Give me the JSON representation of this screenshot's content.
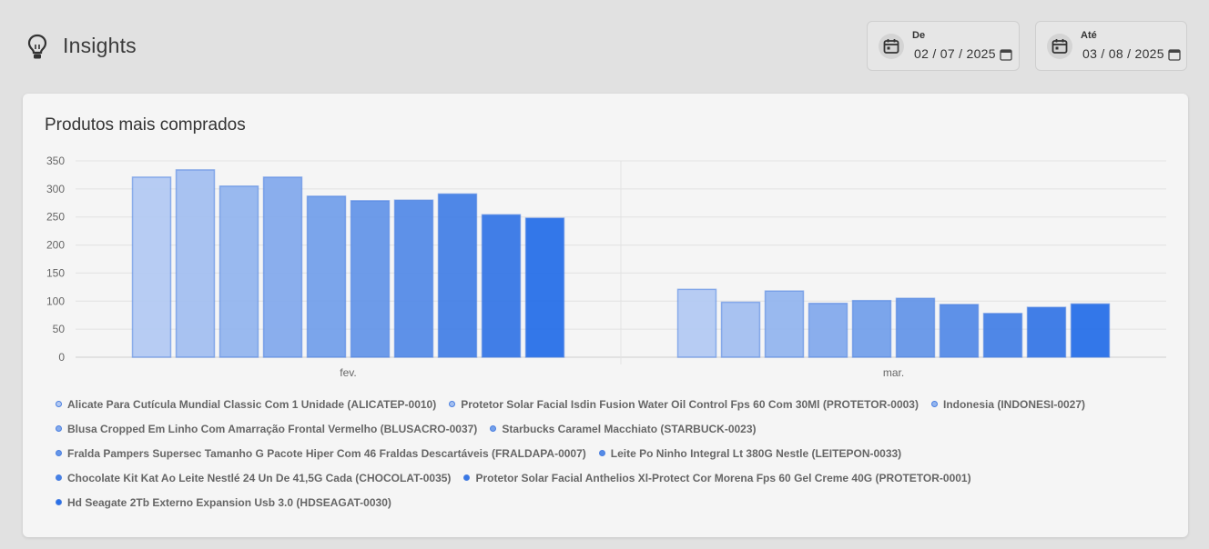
{
  "header": {
    "title": "Insights",
    "icon": "lightbulb-icon"
  },
  "date_from": {
    "label": "De",
    "value": "02 / 07 / 2025"
  },
  "date_to": {
    "label": "Até",
    "value": "03 / 08 / 2025"
  },
  "card": {
    "title": "Produtos mais comprados"
  },
  "chart_data": {
    "type": "bar",
    "title": "Produtos mais comprados",
    "categories": [
      "fev.",
      "mar."
    ],
    "ylim": [
      0,
      350
    ],
    "yticks": [
      0,
      50,
      100,
      150,
      200,
      250,
      300,
      350
    ],
    "grid": true,
    "legend_position": "bottom",
    "series": [
      {
        "name": "Alicate Para Cutícula Mundial Classic Com 1 Unidade (ALICATEP-0010)",
        "values": [
          321,
          121
        ],
        "color": "#b3c9f2"
      },
      {
        "name": "Protetor Solar Facial Isdin Fusion Water Oil Control Fps 60 Com 30Ml (PROTETOR-0003)",
        "values": [
          334,
          98
        ],
        "color": "#a3bff0"
      },
      {
        "name": "Indonesia (INDONESI-0027)",
        "values": [
          305,
          118
        ],
        "color": "#93b5ee"
      },
      {
        "name": "Blusa Cropped Em Linho Com Amarração Frontal Vermelho (BLUSACRO-0037)",
        "values": [
          321,
          96
        ],
        "color": "#84aaec"
      },
      {
        "name": "Starbucks Caramel Macchiato (STARBUCK-0023)",
        "values": [
          287,
          101
        ],
        "color": "#74a0ea"
      },
      {
        "name": "Fralda Pampers Supersec Tamanho G Pacote Hiper Com 46 Fraldas Descartáveis (FRALDAPA-0007)",
        "values": [
          279,
          105
        ],
        "color": "#6596e8"
      },
      {
        "name": "Leite Po Ninho Integral Lt 380G Nestle (LEITEPON-0033)",
        "values": [
          280,
          94
        ],
        "color": "#558be7"
      },
      {
        "name": "Chocolate Kit Kat Ao Leite Nestlé 24 Un De 41,5G Cada (CHOCOLAT-0035)",
        "values": [
          291,
          78
        ],
        "color": "#4681e6"
      },
      {
        "name": "Protetor Solar Facial Anthelios Xl-Protect Cor Morena Fps 60 Gel Creme 40G (PROTETOR-0001)",
        "values": [
          254,
          89
        ],
        "color": "#3777e6"
      },
      {
        "name": "Hd Seagate 2Tb Externo Expansion Usb 3.0 (HDSEAGAT-0030)",
        "values": [
          248,
          95
        ],
        "color": "#2870e8"
      }
    ]
  }
}
